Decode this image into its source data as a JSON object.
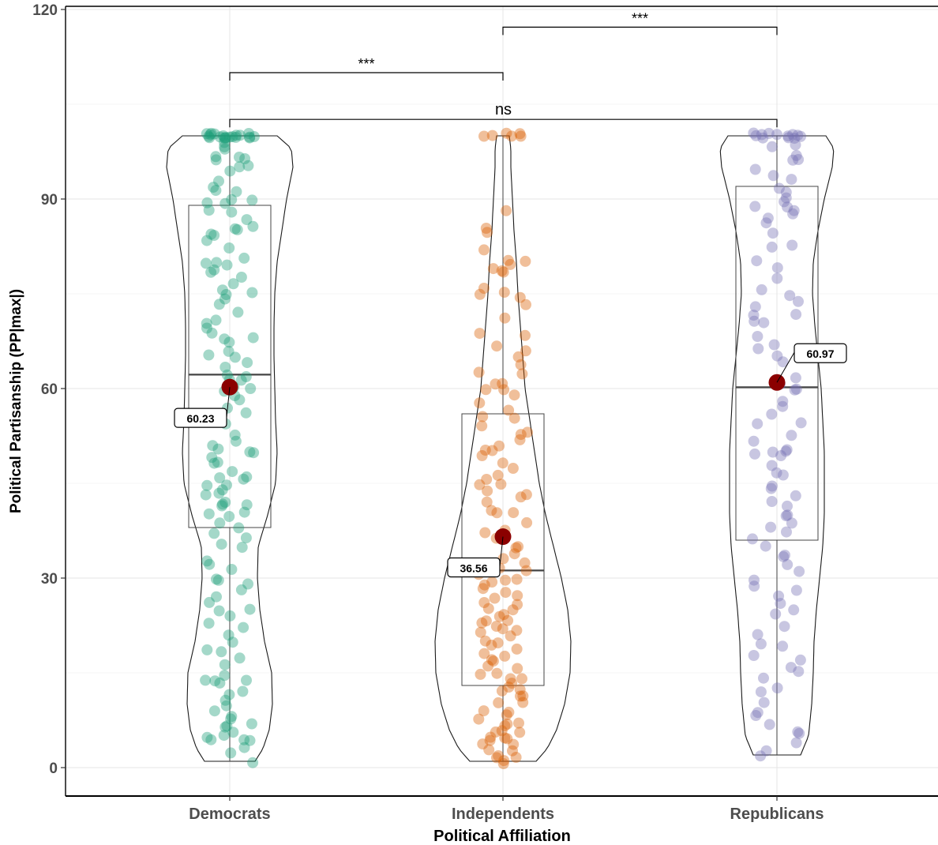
{
  "chart_data": {
    "type": "violin-box-jitter",
    "title": "",
    "xlabel": "Political Affiliation",
    "ylabel": "Political Partisanship (PP|max|)",
    "ylim": [
      -4.5,
      120.5
    ],
    "yticks": [
      0,
      30,
      60,
      90,
      120
    ],
    "ytick_labels": [
      "0",
      "30",
      "60",
      "90",
      "120"
    ],
    "grid": true,
    "categories": [
      "Democrats",
      "Independents",
      "Republicans"
    ],
    "colors": {
      "Democrats": "#1b9e77",
      "Independents": "#d95f02",
      "Republicans": "#7570b3",
      "mean_point": "#8b0000"
    },
    "groups": [
      {
        "name": "Democrats",
        "mean": 60.23,
        "mean_label": "60.23",
        "box": {
          "min": 1,
          "q1": 38,
          "median": 62.2,
          "q3": 89,
          "max": 100
        },
        "violin_range": [
          1,
          100
        ],
        "violin_width": [
          [
            1,
            0.32
          ],
          [
            3,
            0.42
          ],
          [
            6,
            0.5
          ],
          [
            10,
            0.54
          ],
          [
            15,
            0.53
          ],
          [
            20,
            0.44
          ],
          [
            25,
            0.38
          ],
          [
            30,
            0.35
          ],
          [
            35,
            0.36
          ],
          [
            40,
            0.48
          ],
          [
            45,
            0.58
          ],
          [
            50,
            0.6
          ],
          [
            55,
            0.58
          ],
          [
            60,
            0.57
          ],
          [
            65,
            0.56
          ],
          [
            70,
            0.56
          ],
          [
            75,
            0.57
          ],
          [
            80,
            0.6
          ],
          [
            85,
            0.66
          ],
          [
            90,
            0.72
          ],
          [
            95,
            0.8
          ],
          [
            98,
            0.78
          ],
          [
            100,
            0.6
          ]
        ],
        "points": [
          100,
          100,
          100,
          100,
          100,
          100,
          100,
          100,
          100,
          100,
          100,
          100,
          100,
          100,
          100,
          100,
          100,
          100,
          100,
          100,
          99,
          98,
          98,
          97,
          97,
          96,
          96,
          95,
          95,
          94,
          93,
          92,
          91,
          91,
          90,
          90,
          89,
          89,
          88,
          88,
          87,
          86,
          85,
          85,
          84,
          84,
          83,
          82,
          81,
          80,
          80,
          80,
          79,
          78,
          78,
          77,
          76,
          75,
          75,
          74,
          73,
          72,
          71,
          70,
          70,
          69,
          68,
          68,
          67,
          66,
          65,
          65,
          64,
          63,
          62,
          62,
          61,
          61,
          60,
          60,
          60,
          59,
          58,
          57,
          56,
          55,
          54,
          53,
          52,
          51,
          50,
          50,
          50,
          49,
          48,
          48,
          47,
          46,
          46,
          46,
          45,
          45,
          44,
          43,
          43,
          42,
          42,
          42,
          41,
          40,
          40,
          40,
          39,
          38,
          37,
          36,
          35,
          35,
          33,
          32,
          31,
          30,
          30,
          29,
          28,
          27,
          26,
          25,
          25,
          24,
          23,
          22,
          21,
          20,
          19,
          18,
          17,
          16,
          15,
          14,
          14,
          14,
          13,
          12,
          12,
          11,
          10,
          9,
          8,
          8,
          7,
          7,
          6,
          6,
          5,
          5,
          4,
          4,
          4,
          3,
          2,
          1
        ]
      },
      {
        "name": "Independents",
        "mean": 36.56,
        "mean_label": "36.56",
        "box": {
          "min": 1,
          "q1": 13,
          "median": 31.2,
          "q3": 56,
          "max": 100
        },
        "violin_range": [
          1,
          100
        ],
        "violin_width": [
          [
            1,
            0.42
          ],
          [
            3,
            0.56
          ],
          [
            6,
            0.68
          ],
          [
            10,
            0.78
          ],
          [
            15,
            0.85
          ],
          [
            20,
            0.86
          ],
          [
            25,
            0.82
          ],
          [
            30,
            0.74
          ],
          [
            35,
            0.64
          ],
          [
            40,
            0.54
          ],
          [
            45,
            0.46
          ],
          [
            50,
            0.4
          ],
          [
            55,
            0.34
          ],
          [
            60,
            0.28
          ],
          [
            65,
            0.25
          ],
          [
            70,
            0.22
          ],
          [
            75,
            0.19
          ],
          [
            80,
            0.17
          ],
          [
            85,
            0.14
          ],
          [
            90,
            0.12
          ],
          [
            95,
            0.1
          ],
          [
            98,
            0.1
          ],
          [
            100,
            0.08
          ]
        ],
        "points": [
          100,
          100,
          100,
          100,
          100,
          100,
          88,
          85,
          85,
          82,
          80,
          80,
          80,
          79,
          79,
          78,
          76,
          75,
          75,
          74,
          73,
          71,
          69,
          68,
          67,
          66,
          65,
          64,
          63,
          62,
          61,
          61,
          60,
          60,
          59,
          58,
          57,
          56,
          55,
          54,
          53,
          53,
          52,
          51,
          50,
          50,
          49,
          48,
          47,
          46,
          46,
          45,
          45,
          44,
          43,
          43,
          42,
          41,
          40,
          40,
          39,
          38,
          37,
          36,
          35,
          35,
          34,
          33,
          32,
          32,
          31,
          31,
          30,
          30,
          29,
          29,
          28,
          28,
          27,
          27,
          26,
          26,
          25,
          25,
          24,
          24,
          23,
          23,
          23,
          22,
          22,
          22,
          21,
          21,
          20,
          20,
          19,
          19,
          18,
          18,
          17,
          17,
          16,
          16,
          15,
          15,
          14,
          14,
          13,
          13,
          12,
          12,
          11,
          11,
          10,
          10,
          9,
          9,
          8,
          8,
          7,
          7,
          7,
          6,
          6,
          6,
          5,
          5,
          5,
          4,
          4,
          4,
          3,
          3,
          2,
          2,
          2,
          1,
          1
        ]
      },
      {
        "name": "Republicans",
        "mean": 60.97,
        "mean_label": "60.97",
        "box": {
          "min": 2,
          "q1": 36,
          "median": 60.2,
          "q3": 92,
          "max": 100
        },
        "violin_range": [
          2,
          100
        ],
        "violin_width": [
          [
            2,
            0.3
          ],
          [
            5,
            0.4
          ],
          [
            10,
            0.44
          ],
          [
            15,
            0.46
          ],
          [
            20,
            0.47
          ],
          [
            25,
            0.5
          ],
          [
            30,
            0.54
          ],
          [
            35,
            0.58
          ],
          [
            40,
            0.6
          ],
          [
            45,
            0.6
          ],
          [
            50,
            0.6
          ],
          [
            55,
            0.58
          ],
          [
            60,
            0.56
          ],
          [
            65,
            0.52
          ],
          [
            70,
            0.48
          ],
          [
            75,
            0.45
          ],
          [
            80,
            0.46
          ],
          [
            85,
            0.52
          ],
          [
            90,
            0.6
          ],
          [
            95,
            0.7
          ],
          [
            98,
            0.72
          ],
          [
            100,
            0.62
          ]
        ],
        "points": [
          100,
          100,
          100,
          100,
          100,
          100,
          100,
          100,
          100,
          100,
          100,
          100,
          99,
          98,
          97,
          96,
          96,
          95,
          94,
          93,
          92,
          91,
          90,
          90,
          89,
          89,
          88,
          88,
          87,
          86,
          85,
          83,
          82,
          80,
          79,
          77,
          76,
          75,
          74,
          73,
          72,
          72,
          71,
          70,
          68,
          67,
          66,
          65,
          64,
          62,
          61,
          60,
          60,
          58,
          57,
          56,
          55,
          54,
          53,
          52,
          50,
          50,
          50,
          50,
          49,
          48,
          47,
          46,
          45,
          44,
          43,
          42,
          41,
          40,
          40,
          39,
          38,
          37,
          36,
          35,
          34,
          33,
          32,
          31,
          30,
          29,
          28,
          27,
          26,
          25,
          24,
          22,
          21,
          20,
          19,
          18,
          17,
          16,
          15,
          14,
          13,
          12,
          10,
          9,
          8,
          7,
          6,
          5,
          4,
          3,
          2
        ]
      }
    ],
    "comparisons": [
      {
        "from": "Democrats",
        "to": "Independents",
        "y": 110,
        "label": "***"
      },
      {
        "from": "Independents",
        "to": "Republicans",
        "y": 117.2,
        "label": "***"
      },
      {
        "from": "Democrats",
        "to": "Republicans",
        "y": 102.6,
        "label": "ns"
      }
    ]
  }
}
